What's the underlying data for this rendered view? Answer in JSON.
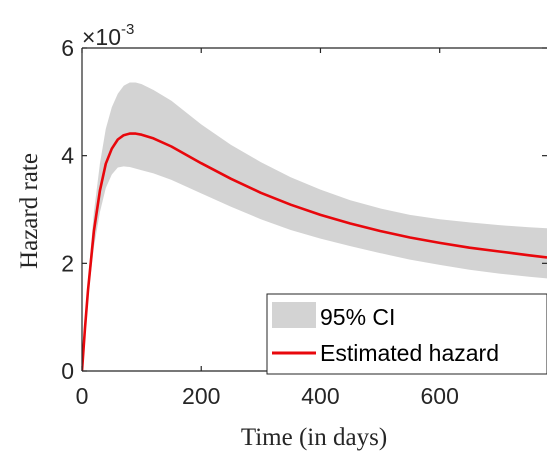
{
  "chart_data": {
    "type": "line",
    "xlabel": "Time (in days)",
    "ylabel": "Hazard rate",
    "y_multiplier_base": "×10",
    "y_multiplier_exp": "-3",
    "xlim": [
      0,
      780
    ],
    "ylim": [
      0,
      6
    ],
    "x_ticks": [
      0,
      200,
      400,
      600
    ],
    "x_tick_labels": [
      "0",
      "200",
      "400",
      "600"
    ],
    "y_ticks": [
      0,
      2,
      4,
      6
    ],
    "y_tick_labels": [
      "0",
      "2",
      "4",
      "6"
    ],
    "grid": false,
    "legend_position": "bottom-right",
    "legend": [
      "95% CI",
      "Estimated hazard"
    ],
    "colors": {
      "ci": "#d3d3d3",
      "hazard": "#e8070c",
      "axis": "#262626"
    },
    "series": [
      {
        "name": "Estimated hazard",
        "x": [
          0,
          5,
          10,
          20,
          30,
          40,
          50,
          60,
          70,
          80,
          90,
          100,
          120,
          150,
          200,
          250,
          300,
          350,
          400,
          450,
          500,
          550,
          600,
          650,
          700,
          750,
          780
        ],
        "y": [
          0,
          0.8,
          1.5,
          2.6,
          3.35,
          3.85,
          4.13,
          4.3,
          4.38,
          4.41,
          4.41,
          4.39,
          4.32,
          4.17,
          3.86,
          3.57,
          3.31,
          3.09,
          2.9,
          2.74,
          2.6,
          2.48,
          2.38,
          2.29,
          2.22,
          2.15,
          2.11
        ]
      },
      {
        "name": "95% CI",
        "x": [
          0,
          5,
          10,
          20,
          30,
          40,
          50,
          60,
          70,
          80,
          90,
          100,
          120,
          150,
          200,
          250,
          300,
          350,
          400,
          450,
          500,
          550,
          600,
          650,
          700,
          750,
          780
        ],
        "lower": [
          0,
          0.72,
          1.35,
          2.3,
          2.95,
          3.4,
          3.65,
          3.78,
          3.8,
          3.79,
          3.76,
          3.73,
          3.67,
          3.55,
          3.3,
          3.05,
          2.82,
          2.62,
          2.46,
          2.32,
          2.19,
          2.07,
          1.97,
          1.88,
          1.81,
          1.75,
          1.72
        ],
        "upper": [
          0,
          0.9,
          1.68,
          2.95,
          3.85,
          4.5,
          4.9,
          5.15,
          5.3,
          5.36,
          5.36,
          5.33,
          5.22,
          5.02,
          4.58,
          4.2,
          3.88,
          3.6,
          3.37,
          3.17,
          3.02,
          2.9,
          2.82,
          2.76,
          2.71,
          2.67,
          2.65
        ]
      }
    ]
  }
}
